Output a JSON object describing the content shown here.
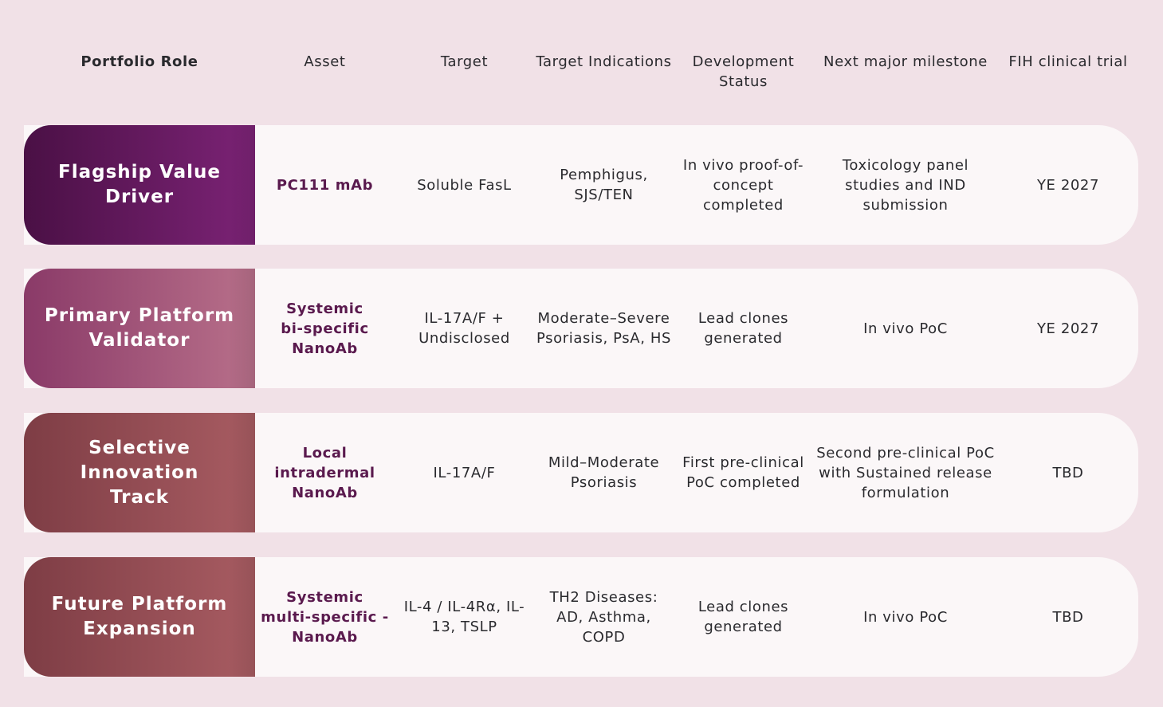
{
  "header": {
    "portfolio_role": "Portfolio Role",
    "asset": "Asset",
    "target": "Target",
    "target_indications": "Target Indications",
    "development_status": "Development\nStatus",
    "next_milestone": "Next major milestone",
    "fih_trial": "FIH clinical trial"
  },
  "rows": [
    {
      "role": "Flagship Value Driver",
      "role_gradient": [
        "#4a1045",
        "#7c2376"
      ],
      "asset": "PC111 mAb",
      "target": "Soluble FasL",
      "indications": "Pemphigus,\nSJS/TEN",
      "status": "In vivo proof-of-\nconcept\ncompleted",
      "milestone": "Toxicology panel\nstudies and IND\nsubmission",
      "fih": "YE 2027"
    },
    {
      "role": "Primary Platform\nValidator",
      "role_gradient": [
        "#8a3a68",
        "#b8708a"
      ],
      "asset": "Systemic\nbi-specific\nNanoAb",
      "target": "IL-17A/F +\nUndisclosed",
      "indications": "Moderate–Severe\nPsoriasis, PsA, HS",
      "status": "Lead clones\ngenerated",
      "milestone": "In vivo PoC",
      "fih": "YE 2027"
    },
    {
      "role": "Selective Innovation\nTrack",
      "role_gradient": [
        "#7e3d45",
        "#a85c62"
      ],
      "asset": "Local\nintradermal\nNanoAb",
      "target": "IL-17A/F",
      "indications": "Mild–Moderate\nPsoriasis",
      "status": "First pre-clinical\nPoC completed",
      "milestone": "Second pre-clinical PoC\nwith Sustained release\nformulation",
      "fih": "TBD"
    },
    {
      "role": "Future Platform\nExpansion",
      "role_gradient": [
        "#7e3d45",
        "#a85c62"
      ],
      "asset": "Systemic\nmulti-specific -\nNanoAb",
      "target": "IL-4 / IL-4Rα, IL-\n13, TSLP",
      "indications": "TH2 Diseases:\nAD, Asthma,\nCOPD",
      "status": "Lead clones\ngenerated",
      "milestone": "In vivo PoC",
      "fih": "TBD"
    }
  ]
}
